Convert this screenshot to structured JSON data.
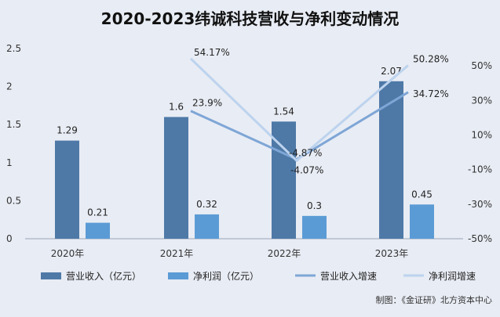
{
  "chart_data": {
    "type": "bar",
    "title": "2020-2023纬诚科技营收与净利变动情况",
    "categories": [
      "2020年",
      "2021年",
      "2022年",
      "2023年"
    ],
    "series": [
      {
        "name": "营业收入（亿元）",
        "kind": "bar",
        "axis": "left",
        "color": "#4e79a7",
        "values": [
          1.29,
          1.6,
          1.54,
          2.07
        ],
        "labels": [
          "1.29",
          "1.6",
          "1.54",
          "2.07"
        ]
      },
      {
        "name": "净利润（亿元）",
        "kind": "bar",
        "axis": "left",
        "color": "#5b9bd5",
        "values": [
          0.21,
          0.32,
          0.3,
          0.45
        ],
        "labels": [
          "0.21",
          "0.32",
          "0.3",
          "0.45"
        ]
      },
      {
        "name": "营业收入增速",
        "kind": "line",
        "axis": "right",
        "color": "#7ea6d6",
        "values": [
          null,
          23.9,
          -4.07,
          34.72
        ],
        "labels": [
          "",
          "23.9%",
          "-4.07%",
          "34.72%"
        ]
      },
      {
        "name": "净利润增速",
        "kind": "line",
        "axis": "right",
        "color": "#bdd3ee",
        "values": [
          null,
          54.17,
          -4.87,
          50.28
        ],
        "labels": [
          "",
          "54.17%",
          "-4.87%",
          "50.28%"
        ]
      }
    ],
    "y_left": {
      "range": [
        0,
        2.5
      ],
      "ticks": [
        "0",
        "0.5",
        "1",
        "1.5",
        "2",
        "2.5"
      ]
    },
    "y_right": {
      "range": [
        -50,
        60
      ],
      "ticks": [
        "-50%",
        "-30%",
        "-10%",
        "10%",
        "30%",
        "50%"
      ],
      "tick_values": [
        -50,
        -30,
        -10,
        10,
        30,
        50
      ]
    },
    "legend_position": "bottom",
    "grid": false
  },
  "source": "制图：《金证研》北方资本中心"
}
